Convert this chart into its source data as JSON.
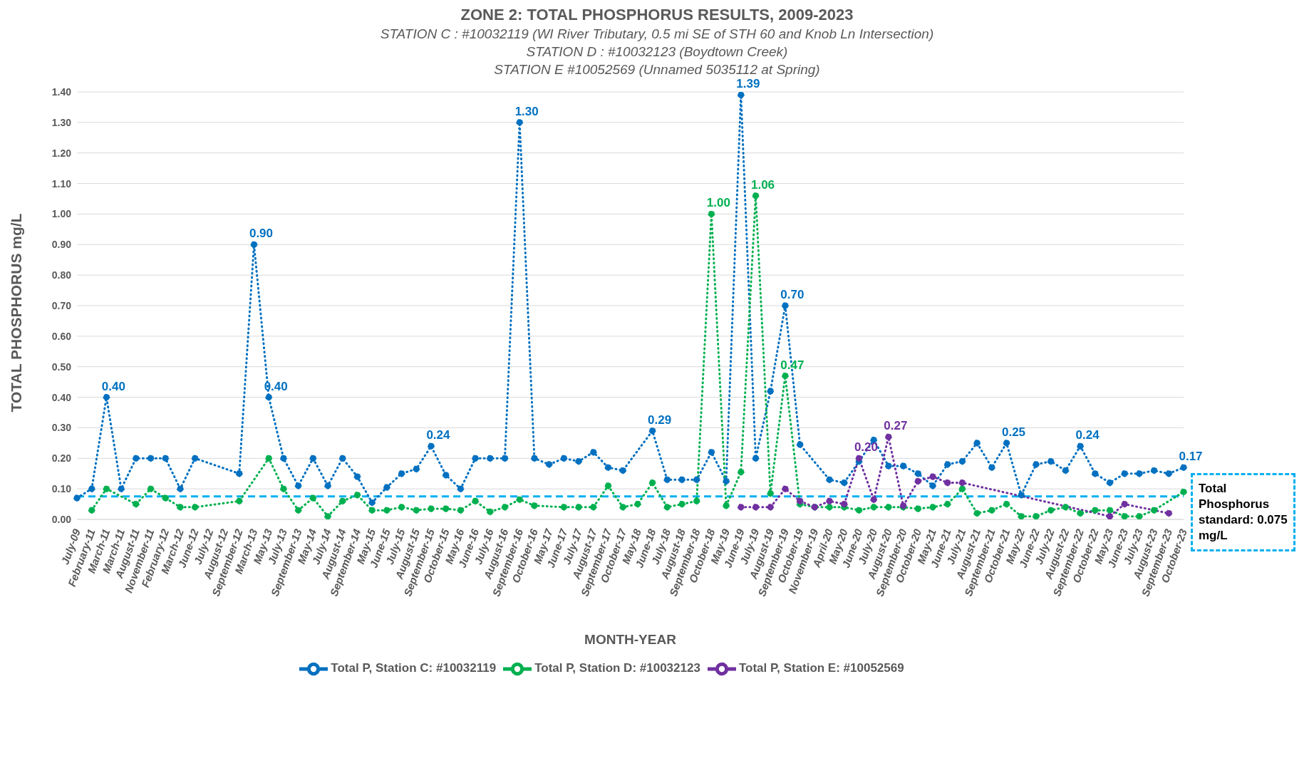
{
  "chart_data": {
    "type": "line",
    "title": "ZONE 2: TOTAL PHOSPHORUS RESULTS, 2009-2023",
    "subtitle": "STATION C : #10032119 (WI River Tributary, 0.5 mi SE of STH 60 and Knob Ln Intersection)\nSTATION D : #10032123 (Boydtown Creek)\nSTATION E  #10052569 (Unnamed 5035112 at Spring)",
    "xlabel": "MONTH-YEAR",
    "ylabel": "TOTAL PHOSPHORUS mg/L",
    "categories": [
      "July-09",
      "February-11",
      "March-11",
      "March-11",
      "August-11",
      "November-11",
      "February-12",
      "March-12",
      "June-12",
      "July-12",
      "August-12",
      "September-12",
      "March-13",
      "May-13",
      "July-13",
      "September-13",
      "May-14",
      "July-14",
      "August-14",
      "September-14",
      "May-15",
      "June-15",
      "July-15",
      "August-15",
      "September-15",
      "October-15",
      "May-16",
      "June-16",
      "July-16",
      "August-16",
      "September-16",
      "October-16",
      "May-17",
      "June-17",
      "July-17",
      "August-17",
      "September-17",
      "October-17",
      "May-18",
      "June-18",
      "July-18",
      "August-18",
      "September-18",
      "October-18",
      "May-19",
      "June-19",
      "July-19",
      "August-19",
      "September-19",
      "October-19",
      "November-19",
      "April-20",
      "May-20",
      "June-20",
      "July-20",
      "August-20",
      "September-20",
      "October-20",
      "May-21",
      "June-21",
      "July-21",
      "August-21",
      "September-21",
      "October-21",
      "May-22",
      "June-22",
      "July-22",
      "August-22",
      "September-22",
      "October-22",
      "May-23",
      "June-23",
      "July-23",
      "August-23",
      "September-23",
      "October-23"
    ],
    "series": [
      {
        "name": "Total P, Station C: #10032119",
        "color": "#0070c0",
        "values": [
          0.07,
          0.1,
          0.4,
          0.1,
          0.2,
          0.2,
          0.2,
          0.1,
          0.2,
          null,
          null,
          0.15,
          0.9,
          0.4,
          0.2,
          0.11,
          0.2,
          0.11,
          0.2,
          0.14,
          0.055,
          0.105,
          0.15,
          0.165,
          0.24,
          0.145,
          0.1,
          0.2,
          0.2,
          0.2,
          1.3,
          0.2,
          0.18,
          0.2,
          0.19,
          0.22,
          0.17,
          0.16,
          null,
          0.29,
          0.13,
          0.13,
          0.13,
          0.22,
          0.125,
          1.39,
          0.2,
          0.42,
          0.7,
          0.245,
          null,
          0.13,
          0.12,
          0.19,
          0.26,
          0.175,
          0.175,
          0.15,
          0.11,
          0.18,
          0.19,
          0.25,
          0.17,
          0.25,
          0.08,
          0.18,
          0.19,
          0.16,
          0.24,
          0.15,
          0.12,
          0.15,
          0.15,
          0.16,
          0.15,
          0.17
        ],
        "value_labels": [
          null,
          null,
          "0.40",
          null,
          null,
          null,
          null,
          null,
          null,
          null,
          null,
          null,
          "0.90",
          "0.40",
          null,
          null,
          null,
          null,
          null,
          null,
          null,
          null,
          null,
          null,
          "0.24",
          null,
          null,
          null,
          null,
          null,
          "1.30",
          null,
          null,
          null,
          null,
          null,
          null,
          null,
          null,
          "0.29",
          null,
          null,
          null,
          null,
          null,
          "1.39",
          null,
          null,
          "0.70",
          null,
          null,
          null,
          null,
          null,
          null,
          null,
          null,
          null,
          null,
          null,
          null,
          null,
          null,
          "0.25",
          null,
          null,
          null,
          null,
          "0.24",
          null,
          null,
          null,
          null,
          null,
          null,
          "0.17"
        ]
      },
      {
        "name": "Total P, Station D: #10032123",
        "color": "#00b050",
        "values": [
          null,
          0.03,
          0.1,
          null,
          0.05,
          0.1,
          0.07,
          0.04,
          0.04,
          null,
          null,
          0.06,
          null,
          0.2,
          0.1,
          0.03,
          0.07,
          0.01,
          0.06,
          0.08,
          0.03,
          0.03,
          0.04,
          0.03,
          0.035,
          0.035,
          0.03,
          0.06,
          0.025,
          0.04,
          0.065,
          0.045,
          null,
          0.04,
          0.04,
          0.04,
          0.11,
          0.04,
          0.05,
          0.12,
          0.04,
          0.05,
          0.06,
          1.0,
          0.045,
          0.155,
          1.06,
          0.085,
          0.47,
          0.05,
          0.04,
          0.04,
          0.04,
          0.03,
          0.04,
          0.04,
          0.04,
          0.035,
          0.04,
          0.05,
          0.1,
          0.02,
          0.03,
          0.05,
          0.01,
          0.01,
          0.03,
          0.04,
          0.02,
          0.03,
          0.03,
          0.01,
          0.01,
          0.03,
          null,
          0.09
        ],
        "value_labels": [
          null,
          null,
          null,
          null,
          null,
          null,
          null,
          null,
          null,
          null,
          null,
          null,
          null,
          null,
          null,
          null,
          null,
          null,
          null,
          null,
          null,
          null,
          null,
          null,
          null,
          null,
          null,
          null,
          null,
          null,
          null,
          null,
          null,
          null,
          null,
          null,
          null,
          null,
          null,
          null,
          null,
          null,
          null,
          "1.00",
          null,
          null,
          "1.06",
          null,
          "0.47",
          null,
          null,
          null,
          null,
          null,
          null,
          null,
          null,
          null,
          null,
          null,
          null,
          null,
          null,
          null,
          null,
          null,
          null,
          null,
          null,
          null,
          null,
          null,
          null,
          null,
          null,
          null
        ]
      },
      {
        "name": "Total P, Station E: #10052569",
        "color": "#7030a0",
        "values": [
          null,
          null,
          null,
          null,
          null,
          null,
          null,
          null,
          null,
          null,
          null,
          null,
          null,
          null,
          null,
          null,
          null,
          null,
          null,
          null,
          null,
          null,
          null,
          null,
          null,
          null,
          null,
          null,
          null,
          null,
          null,
          null,
          null,
          null,
          null,
          null,
          null,
          null,
          null,
          null,
          null,
          null,
          null,
          null,
          null,
          0.04,
          0.04,
          0.04,
          0.1,
          0.06,
          0.04,
          0.06,
          0.05,
          0.2,
          0.065,
          0.27,
          0.045,
          0.125,
          0.14,
          0.12,
          0.12,
          null,
          null,
          null,
          null,
          null,
          null,
          null,
          null,
          null,
          0.01,
          0.05,
          null,
          null,
          0.02,
          null
        ],
        "value_labels": [
          null,
          null,
          null,
          null,
          null,
          null,
          null,
          null,
          null,
          null,
          null,
          null,
          null,
          null,
          null,
          null,
          null,
          null,
          null,
          null,
          null,
          null,
          null,
          null,
          null,
          null,
          null,
          null,
          null,
          null,
          null,
          null,
          null,
          null,
          null,
          null,
          null,
          null,
          null,
          null,
          null,
          null,
          null,
          null,
          null,
          null,
          null,
          null,
          null,
          null,
          null,
          null,
          null,
          "0.20",
          null,
          "0.27",
          null,
          null,
          null,
          null,
          null,
          null,
          null,
          null,
          null,
          null,
          null,
          null,
          null,
          null,
          null,
          null,
          null,
          null,
          null,
          null
        ]
      }
    ],
    "ylim": [
      0,
      1.4
    ],
    "yticks": [
      {
        "value": 0,
        "label": "0.00"
      },
      {
        "value": 0.1,
        "label": "0.10"
      },
      {
        "value": 0.2,
        "label": "0.20"
      },
      {
        "value": 0.3,
        "label": "0.30"
      },
      {
        "value": 0.4,
        "label": "0.40"
      },
      {
        "value": 0.5,
        "label": "0.50"
      },
      {
        "value": 0.6,
        "label": "0.60"
      },
      {
        "value": 0.7,
        "label": "0.70"
      },
      {
        "value": 0.8,
        "label": "0.80"
      },
      {
        "value": 0.9,
        "label": "0.90"
      },
      {
        "value": 1.0,
        "label": "1.00"
      },
      {
        "value": 1.1,
        "label": "1.10"
      },
      {
        "value": 1.2,
        "label": "1.20"
      },
      {
        "value": 1.3,
        "label": "1.30"
      },
      {
        "value": 1.4,
        "label": "1.40"
      }
    ],
    "ref_lines": [
      {
        "axis": "y",
        "value": 0.075,
        "label": "Total Phosphorus standard: 0.075 mg/L",
        "color": "#00b0f0",
        "line_style": "dashed"
      }
    ],
    "grid": "y",
    "legend": "bottom",
    "marker": "circle",
    "line_style": "dotted"
  }
}
